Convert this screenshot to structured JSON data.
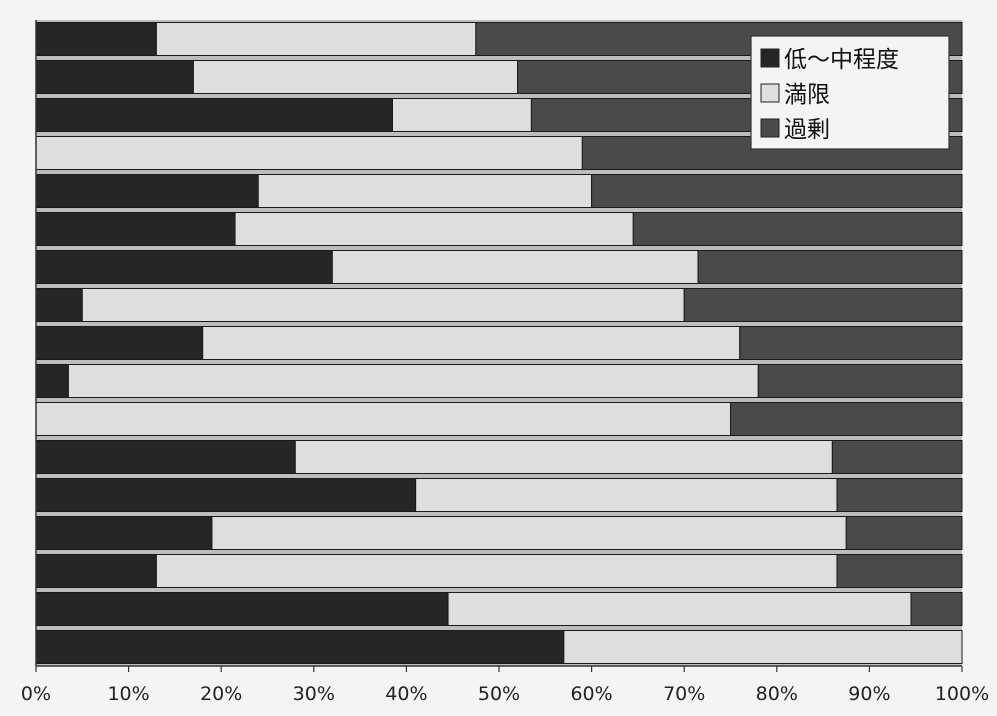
{
  "chart_data": {
    "type": "bar",
    "orientation": "horizontal",
    "stacked": "100%",
    "xlim": [
      0,
      100
    ],
    "x_ticks": [
      "0%",
      "10%",
      "20%",
      "30%",
      "40%",
      "50%",
      "60%",
      "70%",
      "80%",
      "90%",
      "100%"
    ],
    "grid": false,
    "legend_position": "top-right",
    "series": [
      {
        "name": "低～中程度",
        "color": "#262626",
        "values": [
          13,
          17,
          38.5,
          0,
          24,
          21.5,
          32,
          5,
          18,
          3.5,
          0,
          28,
          41,
          19,
          13,
          44.5,
          57
        ]
      },
      {
        "name": "満限",
        "color": "#dedede",
        "values": [
          34.5,
          35,
          15,
          59,
          36,
          43,
          39.5,
          65,
          58,
          74.5,
          75,
          58,
          45.5,
          68.5,
          73.5,
          50,
          43
        ]
      },
      {
        "name": "過剰",
        "color": "#4a4a4a",
        "values": [
          52.5,
          48,
          46.5,
          41,
          40,
          35.5,
          28.5,
          30,
          24,
          22,
          25,
          14,
          13.5,
          12.5,
          13.5,
          5.5,
          0
        ]
      }
    ]
  }
}
